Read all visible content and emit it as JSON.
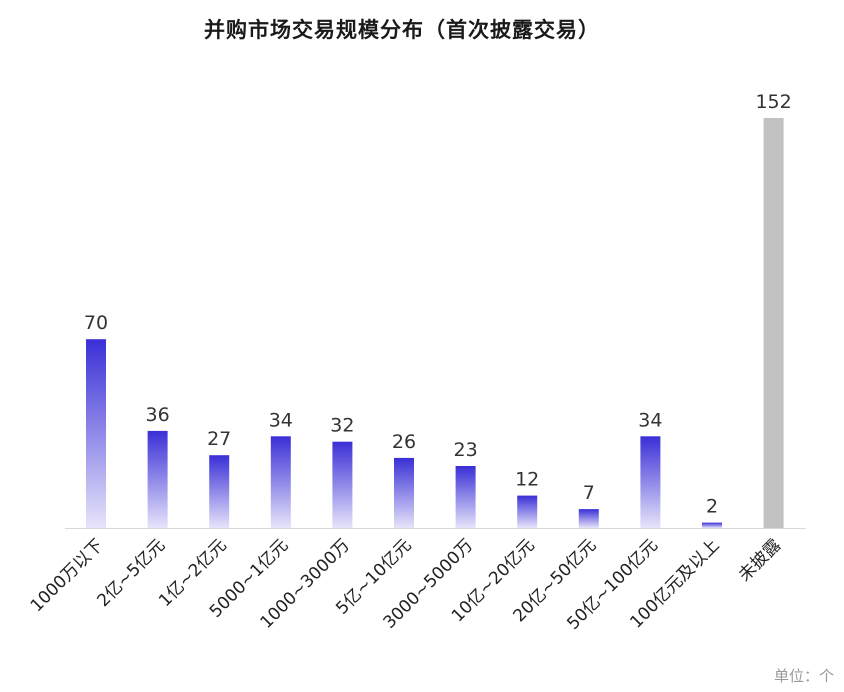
{
  "chart_data": {
    "type": "bar",
    "title": "并购市场交易规模分布（首次披露交易）",
    "categories": [
      "1000万以下",
      "2亿~5亿元",
      "1亿~2亿元",
      "5000~1亿元",
      "1000~3000万",
      "5亿~10亿元",
      "3000~5000万",
      "10亿~20亿元",
      "20亿~50亿元",
      "50亿~100亿元",
      "100亿元及以上",
      "未披露"
    ],
    "values": [
      70,
      36,
      27,
      34,
      32,
      26,
      23,
      12,
      7,
      34,
      2,
      152
    ],
    "ylim": [
      0,
      152
    ],
    "grid": false,
    "bar_colors": {
      "gradient_top": "#3a2fd6",
      "gradient_bottom": "#e6e4fa",
      "undisclosed": "#c2c2c2"
    },
    "unit_note": "单位：个"
  }
}
